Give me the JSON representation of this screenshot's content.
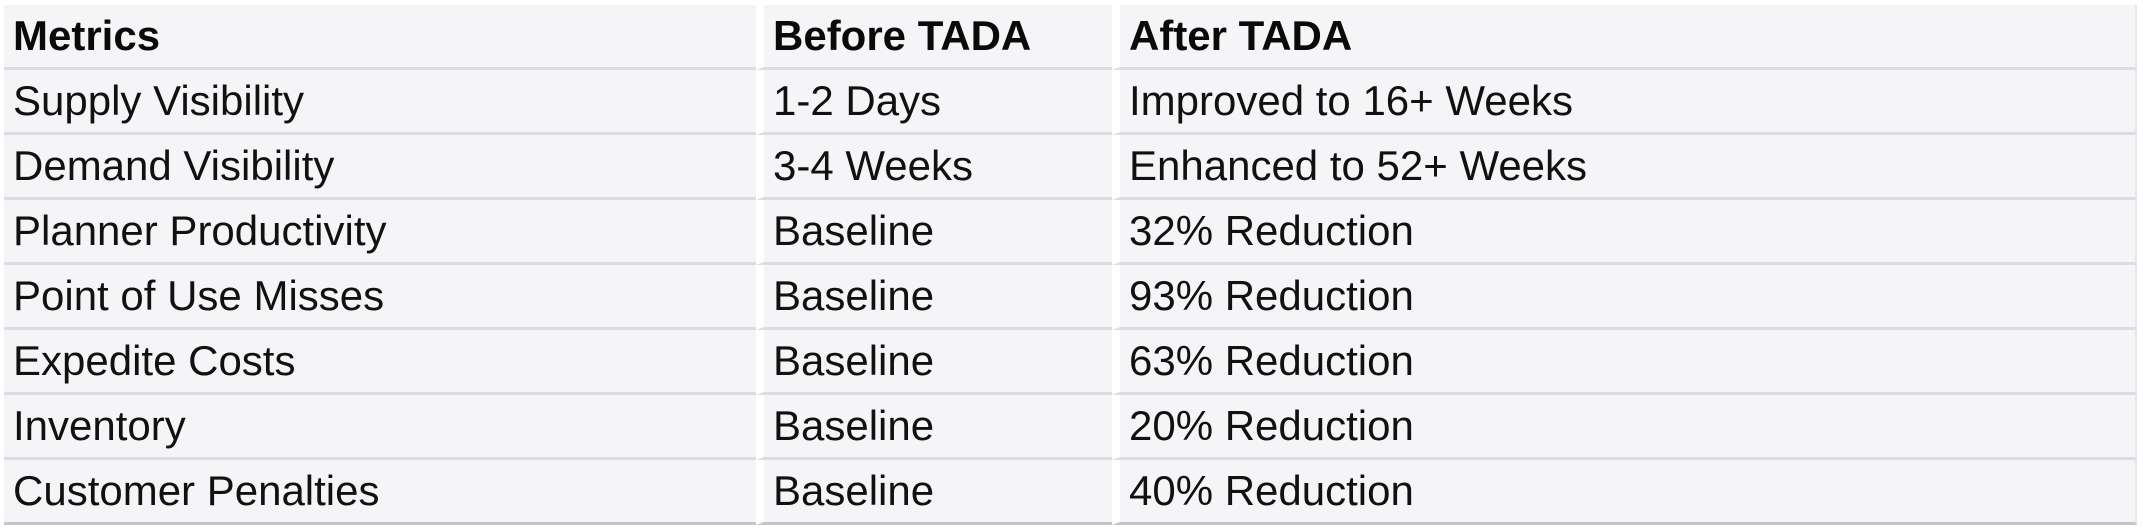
{
  "table": {
    "name": "tada-results-metrics-table",
    "columns": {
      "metric": "Metrics",
      "before": "Before TADA",
      "after": "After TADA"
    },
    "rows": [
      {
        "metric": "Supply Visibility",
        "before": "1-2 Days",
        "after": "Improved to 16+ Weeks"
      },
      {
        "metric": "Demand Visibility",
        "before": "3-4 Weeks",
        "after": "Enhanced to 52+ Weeks"
      },
      {
        "metric": "Planner Productivity",
        "before": "Baseline",
        "after": "32% Reduction"
      },
      {
        "metric": "Point of Use Misses",
        "before": "Baseline",
        "after": "93% Reduction"
      },
      {
        "metric": "Expedite Costs",
        "before": "Baseline",
        "after": "63% Reduction"
      },
      {
        "metric": "Inventory",
        "before": "Baseline",
        "after": "20% Reduction"
      },
      {
        "metric": "Customer Penalties",
        "before": "Baseline",
        "after": "40% Reduction"
      }
    ],
    "colors": {
      "page_background": "#ffffff",
      "cell_background": "#f5f5f7",
      "row_divider": "#dcdce1",
      "bottom_border": "#c4c4ca",
      "column_gap": "#ffffff",
      "text": "#111111"
    }
  }
}
